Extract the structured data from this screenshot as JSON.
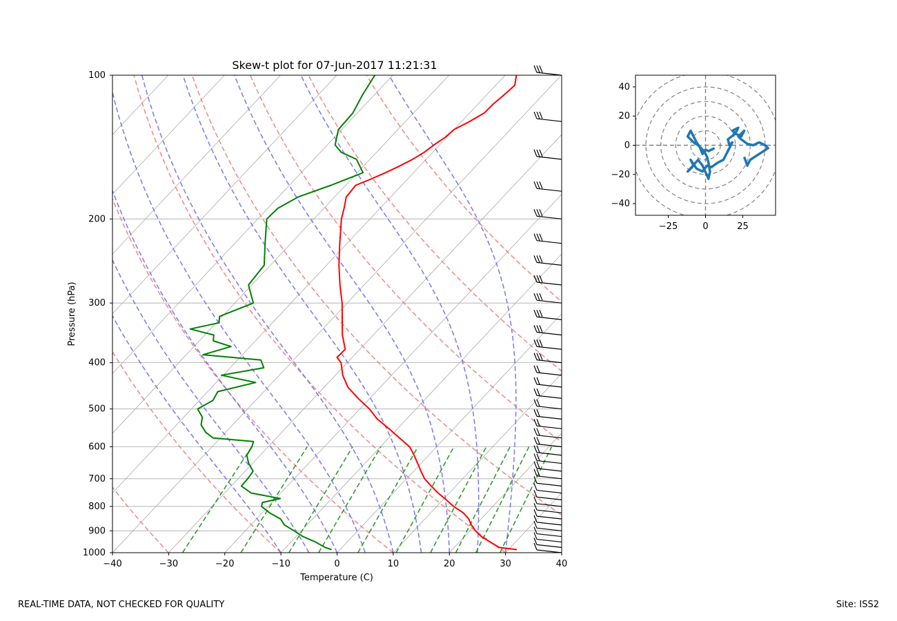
{
  "footer": {
    "left": "REAL-TIME DATA, NOT CHECKED FOR QUALITY",
    "right": "Site: ISS2"
  },
  "colors": {
    "temperature": "#ff0000",
    "dewpoint": "#008000",
    "dry_adiabats": "#f08080",
    "moist_adiabats": "#7070f0",
    "mixing_ratio": "#2e9a2e",
    "hodograph": "#1f77b4",
    "isotherms": "#aaaaaa"
  },
  "chart_data": [
    {
      "type": "line",
      "chart_kind": "skew-t",
      "title": "Skew-t plot for 07-Jun-2017 11:21:31",
      "xlabel": "Temperature (C)",
      "ylabel": "Pressure (hPa)",
      "xlim": [
        -40,
        40
      ],
      "ylim": [
        1000,
        100
      ],
      "y_scale": "log",
      "x_ticks": [
        "−40",
        "−30",
        "−20",
        "−10",
        "0",
        "10",
        "20",
        "30",
        "40"
      ],
      "y_ticks": [
        "1000",
        "900",
        "800",
        "700",
        "600",
        "500",
        "400",
        "300",
        "200",
        "100"
      ],
      "grid": true,
      "series": [
        {
          "key": "temperature",
          "pressure": [
            985,
            975,
            950,
            925,
            900,
            875,
            850,
            825,
            800,
            775,
            750,
            725,
            700,
            675,
            650,
            625,
            600,
            575,
            550,
            525,
            500,
            475,
            450,
            425,
            400,
            390,
            375,
            350,
            325,
            300,
            275,
            250,
            225,
            200,
            190,
            180,
            170,
            165,
            160,
            155,
            150,
            145,
            140,
            135,
            130,
            125,
            120,
            115,
            110,
            105,
            100
          ],
          "temp": [
            31.5,
            28,
            25.5,
            23,
            21,
            19.3,
            17.8,
            15.8,
            13,
            10.6,
            8,
            5.6,
            3.2,
            1.3,
            -0.6,
            -2.6,
            -4.8,
            -8.1,
            -11.5,
            -15.2,
            -18.3,
            -22.1,
            -25.8,
            -28.7,
            -31.1,
            -32.7,
            -32.6,
            -35.5,
            -38.1,
            -40.9,
            -44.3,
            -47.8,
            -51.3,
            -55.1,
            -56.4,
            -57.9,
            -58.2,
            -56.5,
            -55,
            -53.6,
            -52.4,
            -51.5,
            -51,
            -50.3,
            -50,
            -48.6,
            -47.4,
            -47.3,
            -46.9,
            -46.6,
            -48
          ]
        },
        {
          "key": "dewpoint",
          "pressure": [
            985,
            975,
            950,
            925,
            900,
            875,
            850,
            825,
            800,
            785,
            770,
            750,
            725,
            700,
            675,
            650,
            625,
            600,
            585,
            575,
            560,
            540,
            520,
            500,
            480,
            460,
            440,
            425,
            410,
            395,
            385,
            370,
            360,
            350,
            340,
            330,
            320,
            300,
            275,
            250,
            225,
            200,
            190,
            180,
            170,
            160,
            150,
            145,
            140,
            130,
            120,
            110,
            100
          ],
          "temp": [
            -1.5,
            -3,
            -5.6,
            -8.8,
            -11.3,
            -14,
            -15.7,
            -18.7,
            -21.2,
            -21.7,
            -19.2,
            -25.3,
            -28.2,
            -28.3,
            -28.6,
            -30.7,
            -32.4,
            -32.9,
            -33.5,
            -41.3,
            -43.5,
            -45.6,
            -46.7,
            -48.9,
            -47.6,
            -48.2,
            -43,
            -50.3,
            -44,
            -45.8,
            -57,
            -53.4,
            -57.5,
            -58.4,
            -63.6,
            -59.5,
            -60.5,
            -56.7,
            -60.6,
            -61.1,
            -64.6,
            -68.4,
            -68.2,
            -66.5,
            -62.6,
            -59,
            -62.4,
            -66.3,
            -68.6,
            -70.6,
            -70.8,
            -72.1,
            -73.2
          ]
        }
      ]
    },
    {
      "type": "line",
      "chart_kind": "hodograph",
      "xlim": [
        -47,
        47
      ],
      "ylim": [
        -48,
        48
      ],
      "x_ticks": [
        "−25",
        "0",
        "25"
      ],
      "y_ticks": [
        "40",
        "20",
        "0",
        "−20",
        "−40"
      ],
      "rings": [
        10,
        20,
        30,
        40,
        50
      ],
      "u": [
        6,
        2,
        0,
        -2,
        -4,
        -6,
        -8,
        -10,
        -12,
        -8,
        -5,
        -3,
        -1,
        1,
        2,
        3,
        2,
        -2,
        -5,
        -12,
        -8,
        -10,
        -6,
        -2,
        1,
        4,
        8,
        12,
        14,
        16,
        18,
        16,
        15,
        20,
        22,
        18,
        20,
        24,
        26,
        22,
        24,
        28,
        32,
        36,
        40,
        42,
        36,
        30,
        28,
        26
      ],
      "v": [
        -2,
        -4,
        -3,
        -6,
        -1,
        2,
        6,
        10,
        6,
        2,
        0,
        -2,
        -4,
        -8,
        -12,
        -18,
        -23,
        -14,
        -10,
        -18,
        -14,
        -10,
        -16,
        -18,
        -14,
        -15,
        -12,
        -10,
        -6,
        -2,
        2,
        0,
        4,
        8,
        12,
        10,
        8,
        6,
        10,
        6,
        4,
        1,
        0,
        2,
        0,
        -2,
        -6,
        -10,
        -14,
        -8
      ]
    }
  ]
}
